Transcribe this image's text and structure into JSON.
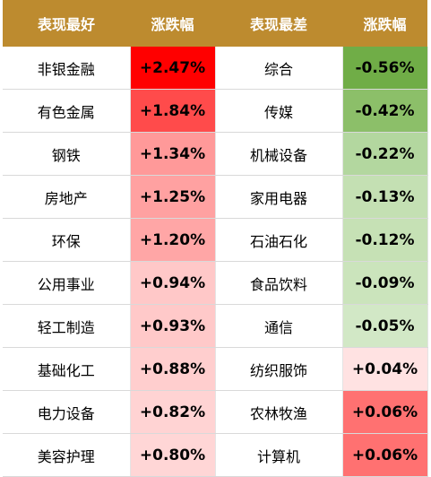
{
  "header": [
    "表现最好",
    "涨跌幅",
    "表现最差",
    "涨跌幅"
  ],
  "table": {
    "rows": [
      {
        "cells": [
          "非银金融",
          "+2.47%",
          "综合",
          "-0.56%"
        ],
        "colors": [
          "#ff0000",
          "#70ad47"
        ]
      },
      {
        "cells": [
          "有色金属",
          "+1.84%",
          "传媒",
          "-0.42%"
        ],
        "colors": [
          "#ff4b4b",
          "#8cbf69"
        ]
      },
      {
        "cells": [
          "钢铁",
          "+1.34%",
          "机械设备",
          "-0.22%"
        ],
        "colors": [
          "#ff9999",
          "#b3d79f"
        ]
      },
      {
        "cells": [
          "房地产",
          "+1.25%",
          "家用电器",
          "-0.13%"
        ],
        "colors": [
          "#ffa1a1",
          "#c4e0b3"
        ]
      },
      {
        "cells": [
          "环保",
          "+1.20%",
          "石油石化",
          "-0.12%"
        ],
        "colors": [
          "#ffa6a6",
          "#c6e1b5"
        ]
      },
      {
        "cells": [
          "公用事业",
          "+0.94%",
          "食品饮料",
          "-0.09%"
        ],
        "colors": [
          "#ffc8c8",
          "#cbe4bc"
        ]
      },
      {
        "cells": [
          "轻工制造",
          "+0.93%",
          "通信",
          "-0.05%"
        ],
        "colors": [
          "#ffc9c9",
          "#d2e8c6"
        ]
      },
      {
        "cells": [
          "基础化工",
          "+0.88%",
          "纺织服饰",
          "+0.04%"
        ],
        "colors": [
          "#ffcece",
          "#ffe2e2"
        ]
      },
      {
        "cells": [
          "电力设备",
          "+0.82%",
          "农林牧渔",
          "+0.06%"
        ],
        "colors": [
          "#ffd3d3",
          "#ff7171"
        ]
      },
      {
        "cells": [
          "美容护理",
          "+0.80%",
          "计算机",
          "+0.06%"
        ],
        "colors": [
          "#ffd6d6",
          "#ff7171"
        ]
      }
    ]
  }
}
